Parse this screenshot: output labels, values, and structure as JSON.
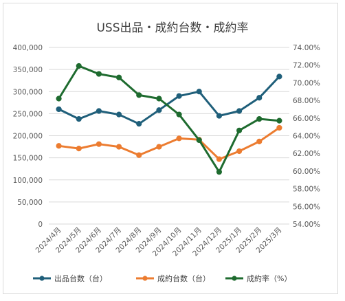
{
  "chart_data": {
    "type": "line",
    "title": "USS出品・成約台数・成約率",
    "categories": [
      "2024/4月",
      "2024/5月",
      "2024/6月",
      "2024/7月",
      "2024/8月",
      "2024/9月",
      "2024/10月",
      "2024/11月",
      "2024/12月",
      "2025/1月",
      "2025/2月",
      "2025/3月"
    ],
    "y_left": {
      "ylim": [
        0,
        400000
      ],
      "ticks": [
        "0",
        "50,000",
        "100,000",
        "150,000",
        "200,000",
        "250,000",
        "300,000",
        "350,000",
        "400,000"
      ]
    },
    "y_right": {
      "ylim": [
        54,
        74
      ],
      "ticks": [
        "54.00%",
        "56.00%",
        "58.00%",
        "60.00%",
        "62.00%",
        "64.00%",
        "66.00%",
        "68.00%",
        "70.00%",
        "72.00%",
        "74.00%"
      ]
    },
    "series": [
      {
        "name": "出品台数（台）",
        "axis": "left",
        "color": "#1f5f7a",
        "values": [
          260000,
          238000,
          256000,
          248000,
          227000,
          258000,
          290000,
          300000,
          245000,
          256000,
          286000,
          334000
        ]
      },
      {
        "name": "成約台数（台）",
        "axis": "left",
        "color": "#ec7c30",
        "values": [
          177000,
          171000,
          181000,
          175000,
          156000,
          175000,
          194000,
          191000,
          147000,
          165000,
          187000,
          218000
        ]
      },
      {
        "name": "成約率（%）",
        "axis": "right",
        "color": "#1e6b2f",
        "values": [
          68.2,
          71.9,
          71.0,
          70.6,
          68.6,
          68.2,
          66.4,
          63.5,
          59.9,
          64.6,
          65.9,
          65.7
        ]
      }
    ],
    "grid": true,
    "legend_position": "bottom"
  }
}
